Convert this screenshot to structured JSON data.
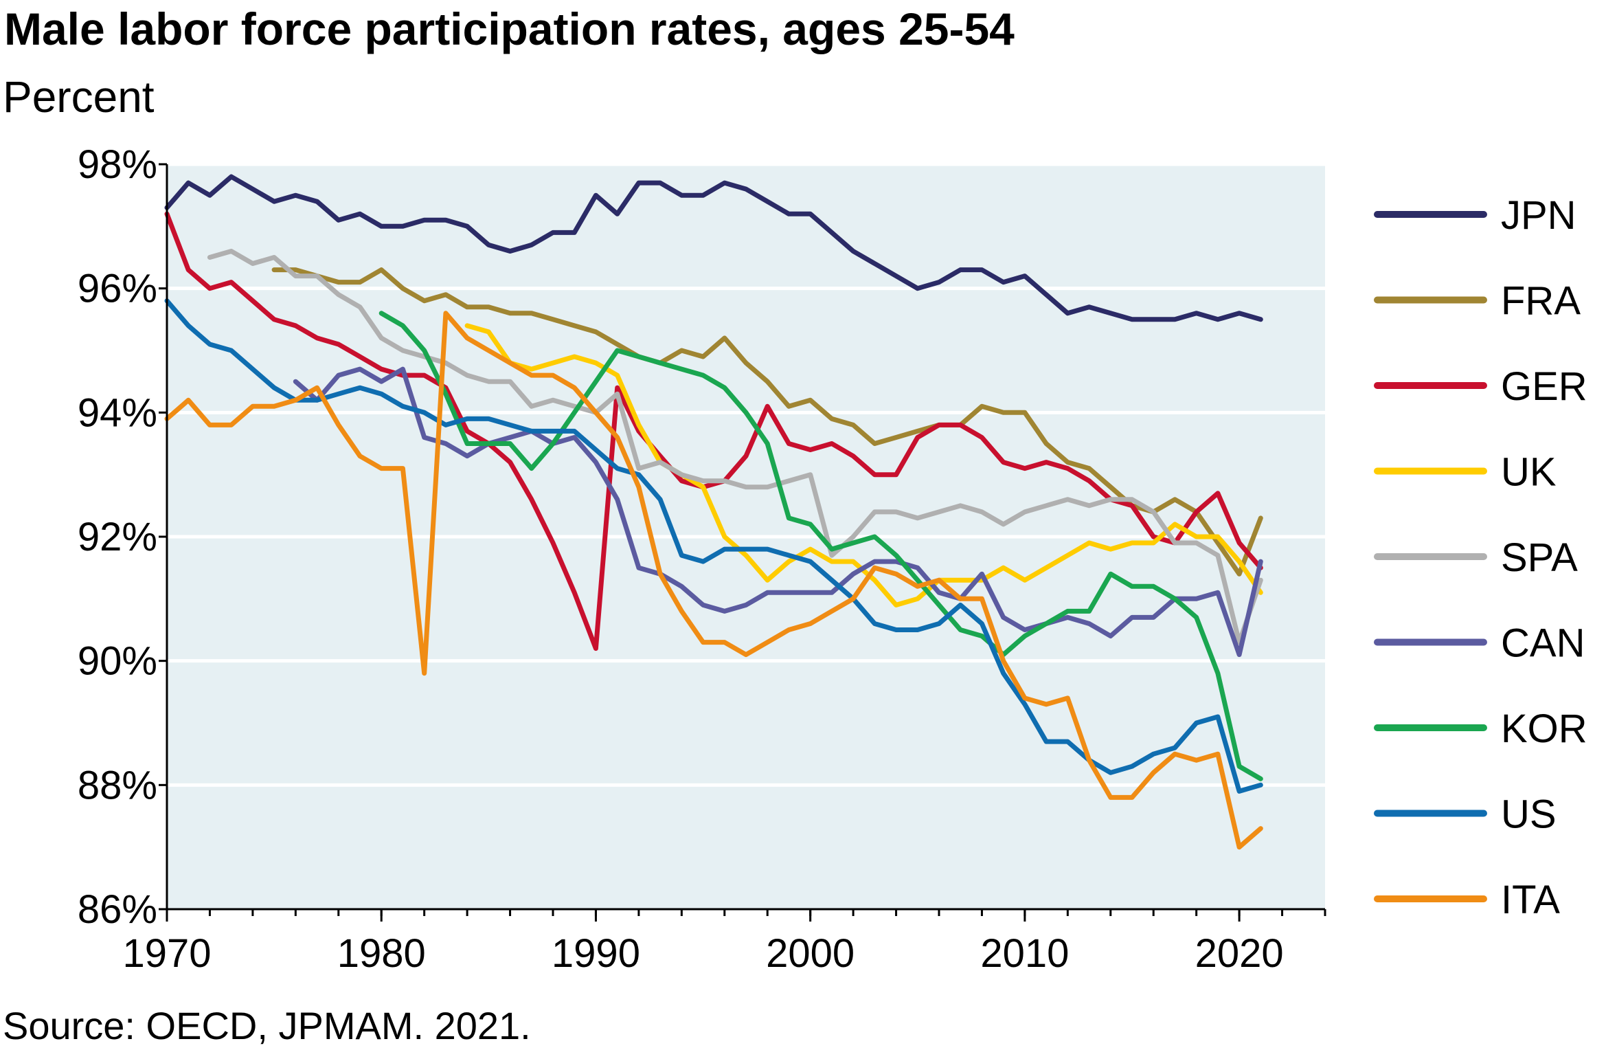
{
  "title": "Male labor force participation rates, ages 25-54",
  "subtitle": "Percent",
  "source": "Source: OECD, JPMAM. 2021.",
  "chart_data": {
    "type": "line",
    "title": "Male labor force participation rates, ages 25-54",
    "ylabel": "Percent",
    "xlim": [
      1970,
      2024
    ],
    "ylim": [
      86,
      98
    ],
    "x_ticks": [
      1970,
      1980,
      1990,
      2000,
      2010,
      2020
    ],
    "x_tick_labels": [
      "1970",
      "1980",
      "1990",
      "2000",
      "2010",
      "2020"
    ],
    "y_ticks": [
      86,
      88,
      90,
      92,
      94,
      96,
      98
    ],
    "y_tick_labels": [
      "86%",
      "88%",
      "90%",
      "92%",
      "94%",
      "96%",
      "98%"
    ],
    "grid": "horizontal",
    "legend": "right",
    "background": "#e6f0f3",
    "series": [
      {
        "name": "JPN",
        "color": "#2b2b66",
        "x": [
          1970,
          1971,
          1972,
          1973,
          1974,
          1975,
          1976,
          1977,
          1978,
          1979,
          1980,
          1981,
          1982,
          1983,
          1984,
          1985,
          1986,
          1987,
          1988,
          1989,
          1990,
          1991,
          1992,
          1993,
          1994,
          1995,
          1996,
          1997,
          1998,
          1999,
          2000,
          2001,
          2002,
          2003,
          2004,
          2005,
          2006,
          2007,
          2008,
          2009,
          2010,
          2011,
          2012,
          2013,
          2014,
          2015,
          2016,
          2017,
          2018,
          2019,
          2020,
          2021
        ],
        "y": [
          97.3,
          97.7,
          97.5,
          97.8,
          97.6,
          97.4,
          97.5,
          97.4,
          97.1,
          97.2,
          97.0,
          97.0,
          97.1,
          97.1,
          97.0,
          96.7,
          96.6,
          96.7,
          96.9,
          96.9,
          97.5,
          97.2,
          97.7,
          97.7,
          97.5,
          97.5,
          97.7,
          97.6,
          97.4,
          97.2,
          97.2,
          96.9,
          96.6,
          96.4,
          96.2,
          96.0,
          96.1,
          96.3,
          96.3,
          96.1,
          96.2,
          95.9,
          95.6,
          95.7,
          95.6,
          95.5,
          95.5,
          95.5,
          95.6,
          95.5,
          95.6,
          95.5
        ]
      },
      {
        "name": "FRA",
        "color": "#a08532",
        "x": [
          1975,
          1976,
          1977,
          1978,
          1979,
          1980,
          1981,
          1982,
          1983,
          1984,
          1985,
          1986,
          1987,
          1988,
          1989,
          1990,
          1991,
          1992,
          1993,
          1994,
          1995,
          1996,
          1997,
          1998,
          1999,
          2000,
          2001,
          2002,
          2003,
          2004,
          2005,
          2006,
          2007,
          2008,
          2009,
          2010,
          2011,
          2012,
          2013,
          2014,
          2015,
          2016,
          2017,
          2018,
          2019,
          2020,
          2021
        ],
        "y": [
          96.3,
          96.3,
          96.2,
          96.1,
          96.1,
          96.3,
          96.0,
          95.8,
          95.9,
          95.7,
          95.7,
          95.6,
          95.6,
          95.5,
          95.4,
          95.3,
          95.1,
          94.9,
          94.8,
          95.0,
          94.9,
          95.2,
          94.8,
          94.5,
          94.1,
          94.2,
          93.9,
          93.8,
          93.5,
          93.6,
          93.7,
          93.8,
          93.8,
          94.1,
          94.0,
          94.0,
          93.5,
          93.2,
          93.1,
          92.8,
          92.5,
          92.4,
          92.6,
          92.4,
          91.9,
          91.4,
          92.3
        ]
      },
      {
        "name": "GER",
        "color": "#c8102e",
        "x": [
          1970,
          1971,
          1972,
          1973,
          1974,
          1975,
          1976,
          1977,
          1978,
          1979,
          1980,
          1981,
          1982,
          1983,
          1984,
          1985,
          1986,
          1987,
          1988,
          1989,
          1990,
          1991,
          1992,
          1993,
          1994,
          1995,
          1996,
          1997,
          1998,
          1999,
          2000,
          2001,
          2002,
          2003,
          2004,
          2005,
          2006,
          2007,
          2008,
          2009,
          2010,
          2011,
          2012,
          2013,
          2014,
          2015,
          2016,
          2017,
          2018,
          2019,
          2020,
          2021
        ],
        "y": [
          97.2,
          96.3,
          96.0,
          96.1,
          95.8,
          95.5,
          95.4,
          95.2,
          95.1,
          94.9,
          94.7,
          94.6,
          94.6,
          94.4,
          93.7,
          93.5,
          93.2,
          92.6,
          91.9,
          91.1,
          90.2,
          94.4,
          93.7,
          93.3,
          92.9,
          92.8,
          92.9,
          93.3,
          94.1,
          93.5,
          93.4,
          93.5,
          93.3,
          93.0,
          93.0,
          93.6,
          93.8,
          93.8,
          93.6,
          93.2,
          93.1,
          93.2,
          93.1,
          92.9,
          92.6,
          92.5,
          92.0,
          91.9,
          92.4,
          92.7,
          91.9,
          91.5
        ]
      },
      {
        "name": "UK",
        "color": "#ffcc00",
        "x": [
          1984,
          1985,
          1986,
          1987,
          1988,
          1989,
          1990,
          1991,
          1992,
          1993,
          1994,
          1995,
          1996,
          1997,
          1998,
          1999,
          2000,
          2001,
          2002,
          2003,
          2004,
          2005,
          2006,
          2007,
          2008,
          2009,
          2010,
          2011,
          2012,
          2013,
          2014,
          2015,
          2016,
          2017,
          2018,
          2019,
          2020,
          2021
        ],
        "y": [
          95.4,
          95.3,
          94.8,
          94.7,
          94.8,
          94.9,
          94.8,
          94.6,
          93.8,
          93.2,
          93.0,
          92.8,
          92.0,
          91.7,
          91.3,
          91.6,
          91.8,
          91.6,
          91.6,
          91.3,
          90.9,
          91.0,
          91.3,
          91.3,
          91.3,
          91.5,
          91.3,
          91.5,
          91.7,
          91.9,
          91.8,
          91.9,
          91.9,
          92.2,
          92.0,
          92.0,
          91.6,
          91.1
        ]
      },
      {
        "name": "SPA",
        "color": "#b0b0b0",
        "x": [
          1972,
          1973,
          1974,
          1975,
          1976,
          1977,
          1978,
          1979,
          1980,
          1981,
          1982,
          1983,
          1984,
          1985,
          1986,
          1987,
          1988,
          1989,
          1990,
          1991,
          1992,
          1993,
          1994,
          1995,
          1996,
          1997,
          1998,
          1999,
          2000,
          2001,
          2002,
          2003,
          2004,
          2005,
          2006,
          2007,
          2008,
          2009,
          2010,
          2011,
          2012,
          2013,
          2014,
          2015,
          2016,
          2017,
          2018,
          2019,
          2020,
          2021
        ],
        "y": [
          96.5,
          96.6,
          96.4,
          96.5,
          96.2,
          96.2,
          95.9,
          95.7,
          95.2,
          95.0,
          94.9,
          94.8,
          94.6,
          94.5,
          94.5,
          94.1,
          94.2,
          94.1,
          94.0,
          94.3,
          93.1,
          93.2,
          93.0,
          92.9,
          92.9,
          92.8,
          92.8,
          92.9,
          93.0,
          91.7,
          92.0,
          92.4,
          92.4,
          92.3,
          92.4,
          92.5,
          92.4,
          92.2,
          92.4,
          92.5,
          92.6,
          92.5,
          92.6,
          92.6,
          92.4,
          91.9,
          91.9,
          91.7,
          90.3,
          91.3
        ]
      },
      {
        "name": "CAN",
        "color": "#5b5ba0",
        "x": [
          1976,
          1977,
          1978,
          1979,
          1980,
          1981,
          1982,
          1983,
          1984,
          1985,
          1986,
          1987,
          1988,
          1989,
          1990,
          1991,
          1992,
          1993,
          1994,
          1995,
          1996,
          1997,
          1998,
          1999,
          2000,
          2001,
          2002,
          2003,
          2004,
          2005,
          2006,
          2007,
          2008,
          2009,
          2010,
          2011,
          2012,
          2013,
          2014,
          2015,
          2016,
          2017,
          2018,
          2019,
          2020,
          2021
        ],
        "y": [
          94.5,
          94.2,
          94.6,
          94.7,
          94.5,
          94.7,
          93.6,
          93.5,
          93.3,
          93.5,
          93.6,
          93.7,
          93.5,
          93.6,
          93.2,
          92.6,
          91.5,
          91.4,
          91.2,
          90.9,
          90.8,
          90.9,
          91.1,
          91.1,
          91.1,
          91.1,
          91.4,
          91.6,
          91.6,
          91.5,
          91.1,
          91.0,
          91.4,
          90.7,
          90.5,
          90.6,
          90.7,
          90.6,
          90.4,
          90.7,
          90.7,
          91.0,
          91.0,
          91.1,
          90.1,
          91.6
        ]
      },
      {
        "name": "KOR",
        "color": "#1aa650",
        "x": [
          1980,
          1981,
          1982,
          1983,
          1984,
          1985,
          1986,
          1987,
          1988,
          1989,
          1990,
          1991,
          1992,
          1993,
          1994,
          1995,
          1996,
          1997,
          1998,
          1999,
          2000,
          2001,
          2002,
          2003,
          2004,
          2005,
          2006,
          2007,
          2008,
          2009,
          2010,
          2011,
          2012,
          2013,
          2014,
          2015,
          2016,
          2017,
          2018,
          2019,
          2020,
          2021
        ],
        "y": [
          95.6,
          95.4,
          95.0,
          94.3,
          93.5,
          93.5,
          93.5,
          93.1,
          93.5,
          94.0,
          94.5,
          95.0,
          94.9,
          94.8,
          94.7,
          94.6,
          94.4,
          94.0,
          93.5,
          92.3,
          92.2,
          91.8,
          91.9,
          92.0,
          91.7,
          91.3,
          90.9,
          90.5,
          90.4,
          90.1,
          90.4,
          90.6,
          90.8,
          90.8,
          91.4,
          91.2,
          91.2,
          91.0,
          90.7,
          89.8,
          88.3,
          88.1
        ]
      },
      {
        "name": "US",
        "color": "#0f6db0",
        "x": [
          1970,
          1971,
          1972,
          1973,
          1974,
          1975,
          1976,
          1977,
          1978,
          1979,
          1980,
          1981,
          1982,
          1983,
          1984,
          1985,
          1986,
          1987,
          1988,
          1989,
          1990,
          1991,
          1992,
          1993,
          1994,
          1995,
          1996,
          1997,
          1998,
          1999,
          2000,
          2001,
          2002,
          2003,
          2004,
          2005,
          2006,
          2007,
          2008,
          2009,
          2010,
          2011,
          2012,
          2013,
          2014,
          2015,
          2016,
          2017,
          2018,
          2019,
          2020,
          2021
        ],
        "y": [
          95.8,
          95.4,
          95.1,
          95.0,
          94.7,
          94.4,
          94.2,
          94.2,
          94.3,
          94.4,
          94.3,
          94.1,
          94.0,
          93.8,
          93.9,
          93.9,
          93.8,
          93.7,
          93.7,
          93.7,
          93.4,
          93.1,
          93.0,
          92.6,
          91.7,
          91.6,
          91.8,
          91.8,
          91.8,
          91.7,
          91.6,
          91.3,
          91.0,
          90.6,
          90.5,
          90.5,
          90.6,
          90.9,
          90.6,
          89.8,
          89.3,
          88.7,
          88.7,
          88.4,
          88.2,
          88.3,
          88.5,
          88.6,
          89.0,
          89.1,
          87.9,
          88.0
        ]
      },
      {
        "name": "ITA",
        "color": "#f08c14",
        "x": [
          1970,
          1971,
          1972,
          1973,
          1974,
          1975,
          1976,
          1977,
          1978,
          1979,
          1980,
          1981,
          1982,
          1983,
          1984,
          1985,
          1986,
          1987,
          1988,
          1989,
          1990,
          1991,
          1992,
          1993,
          1994,
          1995,
          1996,
          1997,
          1998,
          1999,
          2000,
          2001,
          2002,
          2003,
          2004,
          2005,
          2006,
          2007,
          2008,
          2009,
          2010,
          2011,
          2012,
          2013,
          2014,
          2015,
          2016,
          2017,
          2018,
          2019,
          2020,
          2021
        ],
        "y": [
          93.9,
          94.2,
          93.8,
          93.8,
          94.1,
          94.1,
          94.2,
          94.4,
          93.8,
          93.3,
          93.1,
          93.1,
          89.8,
          95.6,
          95.2,
          95.0,
          94.8,
          94.6,
          94.6,
          94.4,
          94.0,
          93.6,
          92.8,
          91.4,
          90.8,
          90.3,
          90.3,
          90.1,
          90.3,
          90.5,
          90.6,
          90.8,
          91.0,
          91.5,
          91.4,
          91.2,
          91.3,
          91.0,
          91.0,
          90.0,
          89.4,
          89.3,
          89.4,
          88.4,
          87.8,
          87.8,
          88.2,
          88.5,
          88.4,
          88.5,
          87.0,
          87.3
        ]
      }
    ]
  }
}
